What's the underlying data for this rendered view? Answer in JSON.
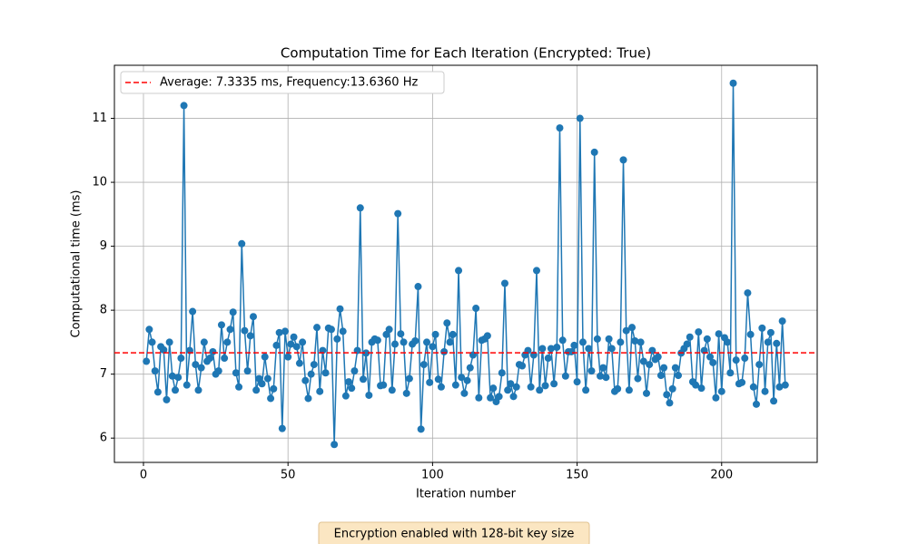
{
  "chart_data": {
    "type": "line",
    "title": "Computation Time for Each Iteration (Encrypted: True)",
    "x_label": "Iteration number",
    "y_label": "Computational time (ms)",
    "color": "#1f77b4",
    "x": [
      1,
      2,
      3,
      4,
      5,
      6,
      7,
      8,
      9,
      10,
      11,
      12,
      13,
      14,
      15,
      16,
      17,
      18,
      19,
      20,
      21,
      22,
      23,
      24,
      25,
      26,
      27,
      28,
      29,
      30,
      31,
      32,
      33,
      34,
      35,
      36,
      37,
      38,
      39,
      40,
      41,
      42,
      43,
      44,
      45,
      46,
      47,
      48,
      49,
      50,
      51,
      52,
      53,
      54,
      55,
      56,
      57,
      58,
      59,
      60,
      61,
      62,
      63,
      64,
      65,
      66,
      67,
      68,
      69,
      70,
      71,
      72,
      73,
      74,
      75,
      76,
      77,
      78,
      79,
      80,
      81,
      82,
      83,
      84,
      85,
      86,
      87,
      88,
      89,
      90,
      91,
      92,
      93,
      94,
      95,
      96,
      97,
      98,
      99,
      100,
      101,
      102,
      103,
      104,
      105,
      106,
      107,
      108,
      109,
      110,
      111,
      112,
      113,
      114,
      115,
      116,
      117,
      118,
      119,
      120,
      121,
      122,
      123,
      124,
      125,
      126,
      127,
      128,
      129,
      130,
      131,
      132,
      133,
      134,
      135,
      136,
      137,
      138,
      139,
      140,
      141,
      142,
      143,
      144,
      145,
      146,
      147,
      148,
      149,
      150,
      151,
      152,
      153,
      154,
      155,
      156,
      157,
      158,
      159,
      160,
      161,
      162,
      163,
      164,
      165,
      166,
      167,
      168,
      169,
      170,
      171,
      172,
      173,
      174,
      175,
      176,
      177,
      178,
      179,
      180,
      181,
      182,
      183,
      184,
      185,
      186,
      187,
      188,
      189,
      190,
      191,
      192,
      193,
      194,
      195,
      196,
      197,
      198,
      199,
      200,
      201,
      202,
      203,
      204,
      205,
      206,
      207,
      208,
      209,
      210,
      211,
      212,
      213,
      214,
      215,
      216,
      217,
      218,
      219,
      220,
      221,
      222
    ],
    "values": [
      7.2,
      7.7,
      7.5,
      7.05,
      6.72,
      7.43,
      7.38,
      6.6,
      7.5,
      6.97,
      6.75,
      6.95,
      7.25,
      11.2,
      6.83,
      7.37,
      7.98,
      7.15,
      6.75,
      7.1,
      7.5,
      7.2,
      7.25,
      7.35,
      7.0,
      7.05,
      7.77,
      7.25,
      7.5,
      7.7,
      7.97,
      7.02,
      6.8,
      9.04,
      7.68,
      7.05,
      7.6,
      7.9,
      6.75,
      6.93,
      6.85,
      7.27,
      6.93,
      6.62,
      6.77,
      7.45,
      7.65,
      6.15,
      7.67,
      7.27,
      7.47,
      7.58,
      7.43,
      7.17,
      7.5,
      6.9,
      6.62,
      7.0,
      7.15,
      7.73,
      6.73,
      7.37,
      7.02,
      7.72,
      7.7,
      5.9,
      7.55,
      8.02,
      7.67,
      6.66,
      6.88,
      6.78,
      7.05,
      7.37,
      9.6,
      6.92,
      7.33,
      6.67,
      7.5,
      7.55,
      7.53,
      6.82,
      6.83,
      7.62,
      7.7,
      6.75,
      7.47,
      9.51,
      7.63,
      7.5,
      6.7,
      6.93,
      7.47,
      7.52,
      8.37,
      6.14,
      7.15,
      7.5,
      6.87,
      7.43,
      7.62,
      6.92,
      6.8,
      7.35,
      7.8,
      7.5,
      7.62,
      6.83,
      8.62,
      6.95,
      6.7,
      6.9,
      7.1,
      7.3,
      8.03,
      6.63,
      7.53,
      7.55,
      7.6,
      6.63,
      6.78,
      6.57,
      6.65,
      7.02,
      8.42,
      6.75,
      6.85,
      6.65,
      6.8,
      7.15,
      7.13,
      7.3,
      7.37,
      6.8,
      7.3,
      8.62,
      6.75,
      7.4,
      6.82,
      7.25,
      7.4,
      6.85,
      7.42,
      10.85,
      7.53,
      6.97,
      7.35,
      7.35,
      7.45,
      6.88,
      11.0,
      7.5,
      6.75,
      7.4,
      7.05,
      10.47,
      7.55,
      6.97,
      7.1,
      6.95,
      7.55,
      7.4,
      6.73,
      6.77,
      7.5,
      10.35,
      7.68,
      6.75,
      7.73,
      7.52,
      6.93,
      7.5,
      7.2,
      6.7,
      7.15,
      7.37,
      7.23,
      7.27,
      6.98,
      7.1,
      6.68,
      6.55,
      6.77,
      7.1,
      6.98,
      7.33,
      7.4,
      7.47,
      7.58,
      6.88,
      6.83,
      7.66,
      6.78,
      7.37,
      7.55,
      7.27,
      7.18,
      6.63,
      7.63,
      6.73,
      7.57,
      7.5,
      7.02,
      11.55,
      7.22,
      6.85,
      6.87,
      7.25,
      8.27,
      7.62,
      6.8,
      6.53,
      7.15,
      7.72,
      6.73,
      7.5,
      7.65,
      6.58,
      7.48,
      6.8,
      7.83,
      6.83
    ],
    "reference_line": {
      "value": 7.3335,
      "label": "Average: 7.3335 ms, Frequency:13.6360 Hz",
      "color": "#ff0000"
    },
    "xlim": [
      -10.05,
      233.05
    ],
    "ylim": [
      5.62,
      11.83
    ],
    "xticks": [
      0,
      50,
      100,
      150,
      200
    ],
    "yticks": [
      6,
      7,
      8,
      9,
      10,
      11
    ],
    "grid": true,
    "legend": "upper left",
    "annotation": "Encryption enabled with 128-bit key size"
  }
}
